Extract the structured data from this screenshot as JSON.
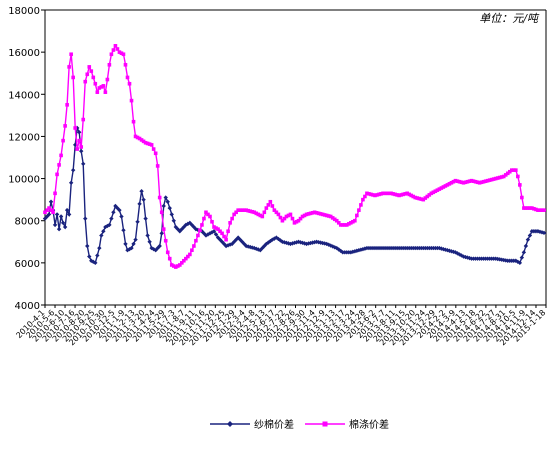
{
  "chart_data": {
    "type": "line",
    "unit_label": "单位：元/吨",
    "ylim": [
      4000,
      18000
    ],
    "y_ticks": [
      "4000",
      "6000",
      "8000",
      "10000",
      "12000",
      "14000",
      "16000",
      "18000"
    ],
    "x_labels": [
      "2010-4-1",
      "2010-5-6",
      "2010-6-10",
      "2010-7-16",
      "2010-8-20",
      "2010-9-25",
      "2010-10-30",
      "2010-12-5",
      "2011-1-9",
      "2011-2-13",
      "2011-3-20",
      "2011-4-24",
      "2011-5-29",
      "2011-7-3",
      "2011-8-7",
      "2011-9-11",
      "2011-10-16",
      "2011-11-20",
      "2011-12-25",
      "2012-1-29",
      "2012-3-4",
      "2012-4-8",
      "2012-5-13",
      "2012-6-17",
      "2012-7-22",
      "2012-8-26",
      "2012-9-30",
      "2012-11-4",
      "2012-12-9",
      "2013-1-13",
      "2013-2-17",
      "2013-3-24",
      "2013-4-28",
      "2013-6-2",
      "2013-7-7",
      "2013-8-11",
      "2013-9-15",
      "2013-10-20",
      "2013-11-24",
      "2013-12-29",
      "2014-2-2",
      "2014-3-9",
      "2014-4-13",
      "2014-5-18",
      "2014-6-22",
      "2014-7-27",
      "2014-8-31",
      "2014-10-5",
      "2014-11-9",
      "2014-12-14",
      "2015-1-18"
    ],
    "grid": false,
    "legend_position": "bottom",
    "x_count": 250,
    "series": [
      {
        "name": "纱棉价差",
        "color": "#1a237e",
        "marker": "diamond",
        "points": [
          [
            0,
            8100
          ],
          [
            2,
            8300
          ],
          [
            3,
            8900
          ],
          [
            4,
            8500
          ],
          [
            5,
            7800
          ],
          [
            6,
            8300
          ],
          [
            7,
            7600
          ],
          [
            8,
            8200
          ],
          [
            9,
            7900
          ],
          [
            10,
            7700
          ],
          [
            11,
            8500
          ],
          [
            12,
            8300
          ],
          [
            13,
            9800
          ],
          [
            14,
            10400
          ],
          [
            15,
            11600
          ],
          [
            16,
            12400
          ],
          [
            17,
            12200
          ],
          [
            18,
            11300
          ],
          [
            19,
            10700
          ],
          [
            20,
            8100
          ],
          [
            21,
            6800
          ],
          [
            22,
            6300
          ],
          [
            23,
            6100
          ],
          [
            25,
            6000
          ],
          [
            27,
            6700
          ],
          [
            28,
            7300
          ],
          [
            30,
            7700
          ],
          [
            32,
            7800
          ],
          [
            34,
            8400
          ],
          [
            35,
            8700
          ],
          [
            37,
            8500
          ],
          [
            38,
            8200
          ],
          [
            40,
            6900
          ],
          [
            41,
            6600
          ],
          [
            43,
            6700
          ],
          [
            45,
            7100
          ],
          [
            47,
            8800
          ],
          [
            48,
            9400
          ],
          [
            49,
            9000
          ],
          [
            50,
            8100
          ],
          [
            51,
            7300
          ],
          [
            53,
            6700
          ],
          [
            55,
            6600
          ],
          [
            57,
            6800
          ],
          [
            58,
            7400
          ],
          [
            59,
            8700
          ],
          [
            60,
            9100
          ],
          [
            61,
            8900
          ],
          [
            63,
            8300
          ],
          [
            65,
            7700
          ],
          [
            67,
            7500
          ],
          [
            70,
            7800
          ],
          [
            72,
            7900
          ],
          [
            75,
            7600
          ],
          [
            78,
            7500
          ],
          [
            80,
            7300
          ],
          [
            82,
            7400
          ],
          [
            84,
            7500
          ],
          [
            86,
            7200
          ],
          [
            88,
            7000
          ],
          [
            90,
            6800
          ],
          [
            93,
            6900
          ],
          [
            96,
            7200
          ],
          [
            100,
            6800
          ],
          [
            104,
            6700
          ],
          [
            107,
            6600
          ],
          [
            110,
            6900
          ],
          [
            113,
            7100
          ],
          [
            115,
            7200
          ],
          [
            118,
            7000
          ],
          [
            122,
            6900
          ],
          [
            126,
            7000
          ],
          [
            130,
            6900
          ],
          [
            135,
            7000
          ],
          [
            140,
            6900
          ],
          [
            145,
            6700
          ],
          [
            148,
            6500
          ],
          [
            152,
            6500
          ],
          [
            156,
            6600
          ],
          [
            160,
            6700
          ],
          [
            166,
            6700
          ],
          [
            172,
            6700
          ],
          [
            178,
            6700
          ],
          [
            184,
            6700
          ],
          [
            190,
            6700
          ],
          [
            196,
            6700
          ],
          [
            200,
            6600
          ],
          [
            204,
            6500
          ],
          [
            208,
            6300
          ],
          [
            212,
            6200
          ],
          [
            218,
            6200
          ],
          [
            224,
            6200
          ],
          [
            230,
            6100
          ],
          [
            234,
            6100
          ],
          [
            236,
            6000
          ],
          [
            238,
            6500
          ],
          [
            240,
            7100
          ],
          [
            242,
            7500
          ],
          [
            245,
            7500
          ],
          [
            249,
            7400
          ]
        ]
      },
      {
        "name": "棉涤价差",
        "color": "#ff00ff",
        "marker": "square",
        "points": [
          [
            0,
            8400
          ],
          [
            2,
            8600
          ],
          [
            4,
            8400
          ],
          [
            5,
            9300
          ],
          [
            6,
            10200
          ],
          [
            8,
            11100
          ],
          [
            10,
            12500
          ],
          [
            11,
            13500
          ],
          [
            12,
            15300
          ],
          [
            13,
            15900
          ],
          [
            14,
            14800
          ],
          [
            15,
            12400
          ],
          [
            16,
            11400
          ],
          [
            17,
            11800
          ],
          [
            18,
            11500
          ],
          [
            19,
            12800
          ],
          [
            20,
            14600
          ],
          [
            22,
            15300
          ],
          [
            23,
            15100
          ],
          [
            25,
            14500
          ],
          [
            26,
            14100
          ],
          [
            27,
            14300
          ],
          [
            29,
            14400
          ],
          [
            30,
            14100
          ],
          [
            31,
            14700
          ],
          [
            32,
            15400
          ],
          [
            33,
            15900
          ],
          [
            35,
            16300
          ],
          [
            37,
            16000
          ],
          [
            39,
            15900
          ],
          [
            40,
            15400
          ],
          [
            41,
            14800
          ],
          [
            42,
            14500
          ],
          [
            43,
            13700
          ],
          [
            44,
            12700
          ],
          [
            45,
            12000
          ],
          [
            47,
            11900
          ],
          [
            50,
            11700
          ],
          [
            53,
            11600
          ],
          [
            55,
            11200
          ],
          [
            56,
            10600
          ],
          [
            57,
            9100
          ],
          [
            58,
            8400
          ],
          [
            59,
            7600
          ],
          [
            61,
            6500
          ],
          [
            63,
            5900
          ],
          [
            65,
            5800
          ],
          [
            67,
            5900
          ],
          [
            70,
            6200
          ],
          [
            72,
            6400
          ],
          [
            74,
            6800
          ],
          [
            76,
            7300
          ],
          [
            78,
            7800
          ],
          [
            80,
            8400
          ],
          [
            82,
            8200
          ],
          [
            84,
            7700
          ],
          [
            86,
            7600
          ],
          [
            88,
            7400
          ],
          [
            90,
            7100
          ],
          [
            92,
            7900
          ],
          [
            94,
            8300
          ],
          [
            96,
            8500
          ],
          [
            100,
            8500
          ],
          [
            104,
            8400
          ],
          [
            108,
            8200
          ],
          [
            110,
            8600
          ],
          [
            112,
            8900
          ],
          [
            114,
            8500
          ],
          [
            116,
            8300
          ],
          [
            118,
            8000
          ],
          [
            120,
            8200
          ],
          [
            122,
            8300
          ],
          [
            124,
            7900
          ],
          [
            126,
            8000
          ],
          [
            128,
            8200
          ],
          [
            130,
            8300
          ],
          [
            134,
            8400
          ],
          [
            138,
            8300
          ],
          [
            142,
            8200
          ],
          [
            145,
            8000
          ],
          [
            147,
            7800
          ],
          [
            150,
            7800
          ],
          [
            154,
            8000
          ],
          [
            156,
            8500
          ],
          [
            158,
            9000
          ],
          [
            160,
            9300
          ],
          [
            164,
            9200
          ],
          [
            168,
            9300
          ],
          [
            172,
            9300
          ],
          [
            176,
            9200
          ],
          [
            180,
            9300
          ],
          [
            184,
            9100
          ],
          [
            188,
            9000
          ],
          [
            192,
            9300
          ],
          [
            196,
            9500
          ],
          [
            200,
            9700
          ],
          [
            204,
            9900
          ],
          [
            208,
            9800
          ],
          [
            212,
            9900
          ],
          [
            216,
            9800
          ],
          [
            220,
            9900
          ],
          [
            224,
            10000
          ],
          [
            228,
            10100
          ],
          [
            232,
            10400
          ],
          [
            234,
            10400
          ],
          [
            235,
            10100
          ],
          [
            236,
            9700
          ],
          [
            237,
            9100
          ],
          [
            238,
            8600
          ],
          [
            242,
            8600
          ],
          [
            245,
            8500
          ],
          [
            249,
            8500
          ]
        ]
      }
    ]
  }
}
